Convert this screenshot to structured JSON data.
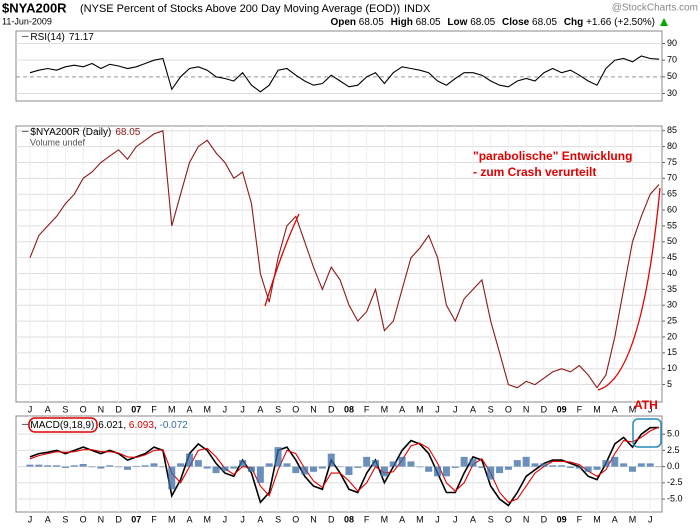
{
  "header": {
    "symbol": "$NYA200R",
    "description": "(NYSE Percent of Stocks Above 200 Day Moving Average (EOD))",
    "exchange": "INDX",
    "date": "11-Jun-2009",
    "source": "@StockCharts.com",
    "quote": [
      {
        "label": "Open",
        "value": 68.05
      },
      {
        "label": "High",
        "value": 68.05
      },
      {
        "label": "Low",
        "value": 68.05
      },
      {
        "label": "Close",
        "value": 68.05
      },
      {
        "label": "Chg",
        "value": "+1.66 (+2.50%)"
      }
    ]
  },
  "chart_data": [
    {
      "type": "line",
      "ylim": [
        21,
        105
      ],
      "yticks": [
        30,
        50,
        70,
        90
      ],
      "grid": true,
      "series": [
        {
          "name": "RSI(14)",
          "color": "#000000",
          "values": [
            55,
            58,
            60,
            58,
            62,
            64,
            62,
            66,
            60,
            65,
            63,
            60,
            62,
            66,
            70,
            72,
            35,
            50,
            60,
            62,
            58,
            50,
            48,
            45,
            55,
            40,
            32,
            40,
            58,
            60,
            52,
            45,
            40,
            42,
            52,
            45,
            38,
            40,
            50,
            55,
            42,
            55,
            62,
            60,
            58,
            55,
            45,
            40,
            48,
            55,
            55,
            52,
            45,
            40,
            38,
            45,
            48,
            45,
            55,
            60,
            55,
            58,
            52,
            45,
            40,
            60,
            70,
            72,
            68,
            75,
            72,
            71.17
          ]
        }
      ]
    },
    {
      "type": "line",
      "ylim": [
        -0.5,
        86.5
      ],
      "yticks": [
        5,
        10,
        15,
        20,
        25,
        30,
        35,
        40,
        45,
        50,
        55,
        60,
        65,
        70,
        75,
        80,
        85
      ],
      "grid": true,
      "note": "Volume undef",
      "annotations": [
        "\"parabolische\" Entwicklung",
        "- zum Crash verurteilt"
      ],
      "categories": [
        "J",
        null,
        "A",
        null,
        "S",
        null,
        "O",
        null,
        "N",
        null,
        "D",
        null,
        "07",
        null,
        "F",
        null,
        "M",
        null,
        "A",
        null,
        "M",
        null,
        "J",
        null,
        "J",
        null,
        "A",
        null,
        "S",
        null,
        "O",
        null,
        "N",
        null,
        "D",
        null,
        "08",
        null,
        "F",
        null,
        "M",
        null,
        "A",
        null,
        "M",
        null,
        "J",
        null,
        "J",
        null,
        "A",
        null,
        "S",
        null,
        "O",
        null,
        "N",
        null,
        "D",
        null,
        "09",
        null,
        "F",
        null,
        "M",
        null,
        "A",
        null,
        "M",
        null,
        "J",
        null
      ],
      "series": [
        {
          "name": "$NYA200R (Daily)",
          "color": "#8b1a1a",
          "values": [
            45,
            52,
            55,
            58,
            62,
            65,
            70,
            72,
            75,
            77,
            79,
            76,
            80,
            82,
            84,
            85,
            55,
            65,
            75,
            80,
            82,
            78,
            75,
            70,
            72,
            62,
            40,
            31,
            45,
            55,
            58,
            50,
            42,
            35,
            42,
            38,
            30,
            25,
            28,
            35,
            22,
            25,
            35,
            45,
            48,
            52,
            45,
            30,
            25,
            32,
            35,
            38,
            25,
            15,
            5,
            4,
            6,
            5,
            7,
            9,
            10,
            9,
            11,
            8,
            4,
            8,
            20,
            35,
            50,
            58,
            65,
            68.05
          ]
        }
      ]
    },
    {
      "type": "line",
      "ylim": [
        -7,
        7.8
      ],
      "grid": true,
      "annotation": "ATH",
      "yticks": [
        {
          "value": 5,
          "label": "5.0"
        },
        {
          "value": 2.5,
          "label": "2.5"
        },
        {
          "value": 0,
          "label": "0.0"
        },
        {
          "value": -2.5,
          "label": "-2.5"
        },
        {
          "value": -5,
          "label": "-5.0"
        }
      ],
      "categories": [
        "J",
        null,
        "A",
        null,
        "S",
        null,
        "O",
        null,
        "N",
        null,
        "D",
        null,
        "07",
        null,
        "F",
        null,
        "M",
        null,
        "A",
        null,
        "M",
        null,
        "J",
        null,
        "J",
        null,
        "A",
        null,
        "S",
        null,
        "O",
        null,
        "N",
        null,
        "D",
        null,
        "08",
        null,
        "F",
        null,
        "M",
        null,
        "A",
        null,
        "M",
        null,
        "J",
        null,
        "J",
        null,
        "A",
        null,
        "S",
        null,
        "O",
        null,
        "N",
        null,
        "D",
        null,
        "09",
        null,
        "F",
        null,
        "M",
        null,
        "A",
        null,
        "M",
        null,
        "J",
        null
      ],
      "series": [
        {
          "name": "MACD(9,18,9)",
          "color": "#000000",
          "values": [
            1.5,
            2.0,
            2.2,
            2.5,
            2.0,
            2.5,
            3.0,
            2.5,
            2.0,
            2.5,
            2.0,
            1.0,
            1.5,
            2.0,
            3.0,
            2.5,
            -4.5,
            -2.0,
            2.0,
            3.5,
            2.5,
            0.5,
            -1.0,
            -1.5,
            1.0,
            -1.0,
            -5.5,
            -4.0,
            2.5,
            3.0,
            1.0,
            -1.5,
            -3.0,
            -3.5,
            1.0,
            -1.0,
            -3.5,
            -4.0,
            -1.0,
            1.0,
            -2.5,
            0.0,
            2.5,
            4.0,
            3.5,
            2.0,
            -1.0,
            -4.0,
            -4.0,
            -1.0,
            1.5,
            1.0,
            -3.0,
            -5.0,
            -6.0,
            -4.0,
            -1.5,
            -0.5,
            0.5,
            1.0,
            1.0,
            0.5,
            0.0,
            -1.5,
            -2.0,
            0.5,
            3.5,
            4.5,
            3.0,
            5.0,
            6.0,
            6.021
          ]
        },
        {
          "color": "#e00000",
          "values": [
            1.2,
            1.7,
            2.0,
            2.3,
            2.2,
            2.3,
            2.6,
            2.6,
            2.3,
            2.3,
            2.1,
            1.5,
            1.4,
            1.8,
            2.5,
            2.6,
            -1.0,
            -2.5,
            0.0,
            2.5,
            2.8,
            1.5,
            -0.3,
            -1.2,
            0.0,
            -0.2,
            -3.0,
            -4.5,
            -0.5,
            2.5,
            2.0,
            -0.3,
            -2.2,
            -3.2,
            -1.0,
            -1.0,
            -2.2,
            -3.8,
            -2.5,
            0.0,
            -1.0,
            -0.8,
            1.0,
            3.2,
            3.6,
            2.8,
            0.5,
            -2.5,
            -3.8,
            -2.5,
            0.3,
            1.2,
            -1.0,
            -4.0,
            -5.5,
            -5.0,
            -3.0,
            -1.0,
            0.0,
            0.8,
            0.8,
            0.7,
            0.3,
            -0.7,
            -1.5,
            -0.5,
            2.0,
            4.0,
            3.8,
            4.5,
            5.5,
            6.093
          ]
        },
        {
          "color": "#3b6ba5",
          "style": "bar",
          "values": [
            0.3,
            0.3,
            0.2,
            0.2,
            -0.2,
            0.2,
            0.4,
            -0.1,
            -0.3,
            0.2,
            -0.1,
            -0.5,
            0.1,
            0.2,
            0.5,
            -0.1,
            -3.5,
            0.5,
            2.0,
            1.0,
            -0.3,
            -1.0,
            -0.7,
            -0.3,
            1.0,
            -0.8,
            -2.5,
            0.5,
            3.0,
            0.5,
            -1.0,
            -1.2,
            -0.8,
            -0.3,
            2.0,
            0.0,
            -1.3,
            -0.2,
            1.5,
            1.0,
            -1.5,
            0.8,
            1.5,
            0.8,
            -0.1,
            -0.8,
            -1.5,
            -1.5,
            -0.2,
            1.5,
            1.2,
            -0.2,
            -2.0,
            -1.0,
            -0.5,
            1.0,
            1.5,
            0.5,
            0.5,
            0.2,
            0.2,
            -0.2,
            -0.3,
            -0.8,
            -0.5,
            1.0,
            1.5,
            0.5,
            -0.8,
            0.5,
            0.5,
            -0.072
          ]
        }
      ]
    }
  ]
}
